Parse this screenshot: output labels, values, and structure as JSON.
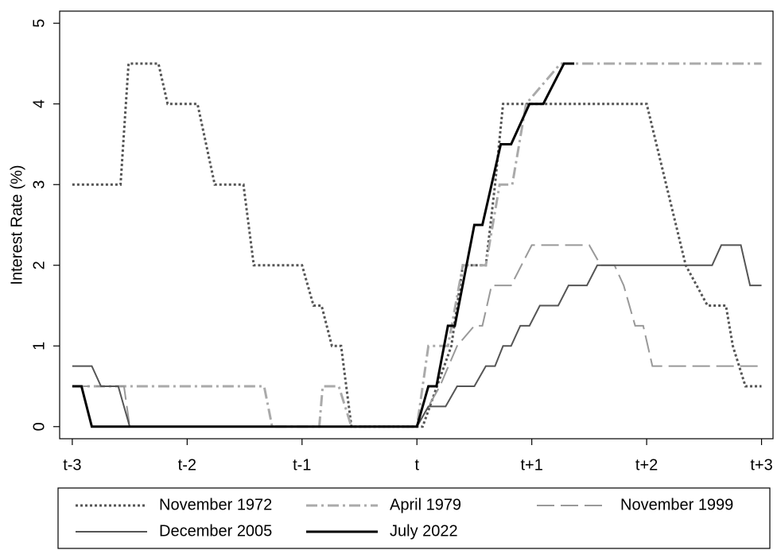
{
  "chart_data": {
    "type": "line",
    "ylabel": "Interest Rate (%)",
    "xlim": [
      -3.11,
      3.1
    ],
    "ylim": [
      -0.15,
      5.15
    ],
    "xticks": [
      {
        "value": -3,
        "label": "t-3"
      },
      {
        "value": -2,
        "label": "t-2"
      },
      {
        "value": -1,
        "label": "t-1"
      },
      {
        "value": 0,
        "label": "t"
      },
      {
        "value": 1,
        "label": "t+1"
      },
      {
        "value": 2,
        "label": "t+2"
      },
      {
        "value": 3,
        "label": "t+3"
      }
    ],
    "yticks": [
      0,
      1,
      2,
      3,
      4,
      5
    ],
    "legend": "bottom",
    "series": [
      {
        "name": "November 1972",
        "color": "#555555",
        "dash": "dotted",
        "x": [
          -3,
          -2.58,
          -2.51,
          -2.25,
          -2.17,
          -1.91,
          -1.76,
          -1.51,
          -1.42,
          -1.0,
          -0.9,
          -0.83,
          -0.74,
          -0.66,
          -0.57,
          0.05,
          0.3,
          0.4,
          0.6,
          0.68,
          0.75,
          2.0,
          2.17,
          2.34,
          2.53,
          2.69,
          2.75,
          2.86,
          3.0
        ],
        "values": [
          3,
          3,
          4.5,
          4.5,
          4,
          4,
          3,
          3,
          2,
          2,
          1.5,
          1.5,
          1,
          1,
          0,
          0,
          1,
          2,
          2,
          3,
          4,
          4,
          3,
          2,
          1.5,
          1.5,
          1,
          0.5,
          0.5
        ]
      },
      {
        "name": "April 1979",
        "color": "#aaaaaa",
        "dash": "dashdot",
        "x": [
          -3,
          -1.33,
          -1.26,
          -0.85,
          -0.82,
          -0.68,
          -0.57,
          0,
          0.1,
          0.27,
          0.4,
          0.6,
          0.72,
          0.83,
          0.95,
          1.25,
          3.0
        ],
        "values": [
          0.5,
          0.5,
          0,
          0,
          0.5,
          0.5,
          0,
          0,
          1,
          1,
          2,
          2,
          3,
          3,
          4,
          4.5,
          4.5
        ]
      },
      {
        "name": "November 1999",
        "color": "#999999",
        "dash": "longdash",
        "x": [
          -3,
          -2.55,
          -2.5,
          0,
          0.2,
          0.35,
          0.5,
          0.57,
          0.65,
          0.82,
          1.0,
          1.5,
          1.6,
          1.72,
          1.8,
          1.9,
          1.97,
          2.05,
          3.0
        ],
        "values": [
          0.5,
          0.5,
          0,
          0,
          0.5,
          1,
          1.25,
          1.25,
          1.75,
          1.75,
          2.25,
          2.25,
          2,
          2,
          1.75,
          1.25,
          1.25,
          0.75,
          0.75
        ]
      },
      {
        "name": "December 2005",
        "color": "#555555",
        "dash": "solid",
        "x": [
          -3,
          -2.83,
          -2.75,
          -2.6,
          -2.5,
          0,
          0.1,
          0.25,
          0.35,
          0.5,
          0.6,
          0.68,
          0.75,
          0.82,
          0.9,
          0.98,
          1.07,
          1.23,
          1.32,
          1.48,
          1.57,
          2.57,
          2.65,
          2.82,
          2.9,
          3.0
        ],
        "values": [
          0.75,
          0.75,
          0.5,
          0.5,
          0,
          0,
          0.25,
          0.25,
          0.5,
          0.5,
          0.75,
          0.75,
          1,
          1,
          1.25,
          1.25,
          1.5,
          1.5,
          1.75,
          1.75,
          2,
          2,
          2.25,
          2.25,
          1.75,
          1.75
        ]
      },
      {
        "name": "July 2022",
        "color": "#000000",
        "dash": "thick",
        "x": [
          -3,
          -2.92,
          -2.83,
          0,
          0.1,
          0.17,
          0.27,
          0.33,
          0.5,
          0.57,
          0.73,
          0.82,
          0.98,
          1.1,
          1.28,
          1.37
        ],
        "values": [
          0.5,
          0.5,
          0,
          0,
          0.5,
          0.5,
          1.25,
          1.25,
          2.5,
          2.5,
          3.5,
          3.5,
          4,
          4,
          4.5,
          4.5
        ]
      }
    ]
  }
}
